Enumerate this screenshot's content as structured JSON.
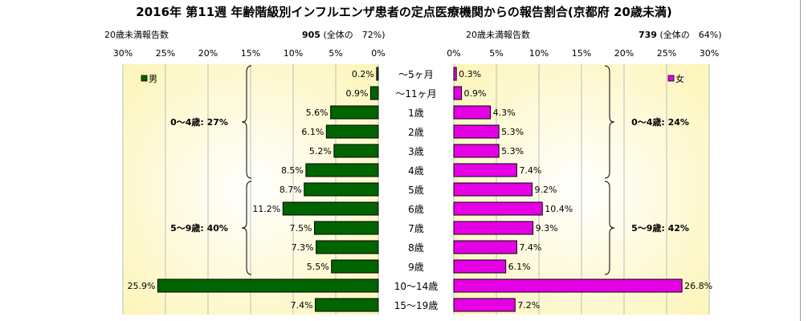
{
  "title": "2016年 第11週 年齢階級別インフルエンザ患者の定点医療機関からの報告割合(京都府 20歳未満)",
  "male_header": {
    "label": "20歳未満報告数",
    "count": "905",
    "ratio": "(全体の　72%)"
  },
  "female_header": {
    "label": "20歳未満報告数",
    "count": "739",
    "ratio": "(全体の　64%)"
  },
  "chart_data": {
    "type": "bar",
    "orientation": "horizontal",
    "layout": "population-pyramid",
    "categories": [
      "〜5ヶ月",
      "〜11ヶ月",
      "1歳",
      "2歳",
      "3歳",
      "4歳",
      "5歳",
      "6歳",
      "7歳",
      "8歳",
      "9歳",
      "10〜14歳",
      "15〜19歳"
    ],
    "series": [
      {
        "name": "男",
        "color": "#006400",
        "values": [
          0.2,
          0.9,
          5.6,
          6.1,
          5.2,
          8.5,
          8.7,
          11.2,
          7.5,
          7.3,
          5.5,
          25.9,
          7.4
        ],
        "labels": [
          "0.2%",
          "0.9%",
          "5.6%",
          "6.1%",
          "5.2%",
          "8.5%",
          "8.7%",
          "11.2%",
          "7.5%",
          "7.3%",
          "5.5%",
          "25.9%",
          "7.4%"
        ]
      },
      {
        "name": "女",
        "color": "#e600e6",
        "values": [
          0.3,
          0.9,
          4.3,
          5.3,
          5.3,
          7.4,
          9.2,
          10.4,
          9.3,
          7.4,
          6.1,
          26.8,
          7.2
        ],
        "labels": [
          "0.3%",
          "0.9%",
          "4.3%",
          "5.3%",
          "5.3%",
          "7.4%",
          "9.2%",
          "10.4%",
          "9.3%",
          "7.4%",
          "6.1%",
          "26.8%",
          "7.2%"
        ]
      }
    ],
    "xlim": [
      0,
      30
    ],
    "x_ticks": [
      "30%",
      "25%",
      "20%",
      "15%",
      "10%",
      "5%",
      "0%"
    ],
    "x_ticks_right": [
      "0%",
      "5%",
      "10%",
      "15%",
      "20%",
      "25%",
      "30%"
    ],
    "grid": true,
    "background": "radial gradient white → #fdf5b8",
    "annotations": [
      {
        "side": "male",
        "text": "0〜4歳: 27%",
        "from": 0,
        "to": 5
      },
      {
        "side": "male",
        "text": "5〜9歳: 40%",
        "from": 6,
        "to": 10
      },
      {
        "side": "female",
        "text": "0〜4歳: 24%",
        "from": 0,
        "to": 5
      },
      {
        "side": "female",
        "text": "5〜9歳: 42%",
        "from": 6,
        "to": 10
      }
    ],
    "legend": {
      "male": "男",
      "female": "女",
      "male_position": "top-left",
      "female_position": "top-right"
    }
  }
}
